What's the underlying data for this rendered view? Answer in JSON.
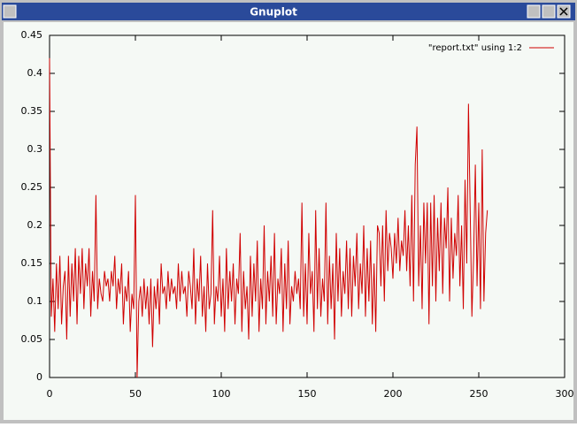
{
  "window": {
    "title": "Gnuplot"
  },
  "chart_data": {
    "type": "line",
    "x": [
      0,
      1,
      2,
      3,
      4,
      5,
      6,
      7,
      8,
      9,
      10,
      11,
      12,
      13,
      14,
      15,
      16,
      17,
      18,
      19,
      20,
      21,
      22,
      23,
      24,
      25,
      26,
      27,
      28,
      29,
      30,
      31,
      32,
      33,
      34,
      35,
      36,
      37,
      38,
      39,
      40,
      41,
      42,
      43,
      44,
      45,
      46,
      47,
      48,
      49,
      50,
      51,
      52,
      53,
      54,
      55,
      56,
      57,
      58,
      59,
      60,
      61,
      62,
      63,
      64,
      65,
      66,
      67,
      68,
      69,
      70,
      71,
      72,
      73,
      74,
      75,
      76,
      77,
      78,
      79,
      80,
      81,
      82,
      83,
      84,
      85,
      86,
      87,
      88,
      89,
      90,
      91,
      92,
      93,
      94,
      95,
      96,
      97,
      98,
      99,
      100,
      101,
      102,
      103,
      104,
      105,
      106,
      107,
      108,
      109,
      110,
      111,
      112,
      113,
      114,
      115,
      116,
      117,
      118,
      119,
      120,
      121,
      122,
      123,
      124,
      125,
      126,
      127,
      128,
      129,
      130,
      131,
      132,
      133,
      134,
      135,
      136,
      137,
      138,
      139,
      140,
      141,
      142,
      143,
      144,
      145,
      146,
      147,
      148,
      149,
      150,
      151,
      152,
      153,
      154,
      155,
      156,
      157,
      158,
      159,
      160,
      161,
      162,
      163,
      164,
      165,
      166,
      167,
      168,
      169,
      170,
      171,
      172,
      173,
      174,
      175,
      176,
      177,
      178,
      179,
      180,
      181,
      182,
      183,
      184,
      185,
      186,
      187,
      188,
      189,
      190,
      191,
      192,
      193,
      194,
      195,
      196,
      197,
      198,
      199,
      200,
      201,
      202,
      203,
      204,
      205,
      206,
      207,
      208,
      209,
      210,
      211,
      212,
      213,
      214,
      215,
      216,
      217,
      218,
      219,
      220,
      221,
      222,
      223,
      224,
      225,
      226,
      227,
      228,
      229,
      230,
      231,
      232,
      233,
      234,
      235,
      236,
      237,
      238,
      239,
      240,
      241,
      242,
      243,
      244,
      245,
      246,
      247,
      248,
      249,
      250,
      251,
      252,
      253,
      254,
      255
    ],
    "series": [
      {
        "name": "\"report.txt\" using 1:2",
        "color": "#d00000",
        "values": [
          0.42,
          0.08,
          0.13,
          0.06,
          0.15,
          0.09,
          0.16,
          0.07,
          0.12,
          0.14,
          0.05,
          0.16,
          0.08,
          0.15,
          0.1,
          0.17,
          0.07,
          0.16,
          0.11,
          0.17,
          0.09,
          0.15,
          0.12,
          0.17,
          0.08,
          0.14,
          0.1,
          0.24,
          0.09,
          0.13,
          0.11,
          0.1,
          0.14,
          0.12,
          0.13,
          0.1,
          0.14,
          0.12,
          0.16,
          0.09,
          0.13,
          0.11,
          0.15,
          0.07,
          0.12,
          0.1,
          0.14,
          0.06,
          0.11,
          0.09,
          0.24,
          0.0,
          0.1,
          0.12,
          0.08,
          0.13,
          0.09,
          0.12,
          0.07,
          0.13,
          0.04,
          0.12,
          0.09,
          0.13,
          0.07,
          0.15,
          0.11,
          0.12,
          0.09,
          0.14,
          0.1,
          0.13,
          0.11,
          0.12,
          0.09,
          0.15,
          0.1,
          0.14,
          0.11,
          0.12,
          0.08,
          0.14,
          0.12,
          0.09,
          0.17,
          0.07,
          0.13,
          0.1,
          0.16,
          0.08,
          0.12,
          0.06,
          0.15,
          0.09,
          0.11,
          0.22,
          0.07,
          0.12,
          0.1,
          0.16,
          0.08,
          0.13,
          0.06,
          0.17,
          0.09,
          0.14,
          0.1,
          0.15,
          0.07,
          0.13,
          0.11,
          0.19,
          0.06,
          0.14,
          0.09,
          0.12,
          0.05,
          0.16,
          0.08,
          0.15,
          0.1,
          0.18,
          0.06,
          0.13,
          0.09,
          0.2,
          0.07,
          0.14,
          0.1,
          0.16,
          0.08,
          0.19,
          0.07,
          0.13,
          0.11,
          0.17,
          0.06,
          0.15,
          0.09,
          0.18,
          0.07,
          0.12,
          0.1,
          0.14,
          0.11,
          0.13,
          0.09,
          0.23,
          0.08,
          0.15,
          0.07,
          0.19,
          0.11,
          0.14,
          0.06,
          0.22,
          0.09,
          0.17,
          0.08,
          0.13,
          0.1,
          0.23,
          0.07,
          0.16,
          0.09,
          0.15,
          0.05,
          0.19,
          0.1,
          0.17,
          0.08,
          0.14,
          0.11,
          0.18,
          0.09,
          0.17,
          0.08,
          0.16,
          0.12,
          0.19,
          0.09,
          0.15,
          0.11,
          0.2,
          0.08,
          0.17,
          0.1,
          0.18,
          0.07,
          0.15,
          0.06,
          0.2,
          0.19,
          0.12,
          0.2,
          0.1,
          0.22,
          0.14,
          0.19,
          0.17,
          0.13,
          0.19,
          0.15,
          0.21,
          0.14,
          0.18,
          0.16,
          0.22,
          0.14,
          0.2,
          0.12,
          0.24,
          0.1,
          0.28,
          0.33,
          0.12,
          0.2,
          0.09,
          0.23,
          0.15,
          0.23,
          0.07,
          0.23,
          0.12,
          0.24,
          0.1,
          0.21,
          0.14,
          0.23,
          0.11,
          0.21,
          0.17,
          0.25,
          0.1,
          0.21,
          0.13,
          0.19,
          0.16,
          0.24,
          0.12,
          0.2,
          0.09,
          0.26,
          0.15,
          0.36,
          0.22,
          0.08,
          0.16,
          0.28,
          0.12,
          0.23,
          0.09,
          0.3,
          0.1,
          0.19,
          0.22
        ]
      }
    ],
    "xlim": [
      0,
      300
    ],
    "xticks": [
      0,
      50,
      100,
      150,
      200,
      250,
      300
    ],
    "ylim": [
      0,
      0.45
    ],
    "yticks": [
      0,
      0.05,
      0.1,
      0.15,
      0.2,
      0.25,
      0.3,
      0.35,
      0.4,
      0.45
    ],
    "grid": false,
    "legend": "top-right"
  }
}
